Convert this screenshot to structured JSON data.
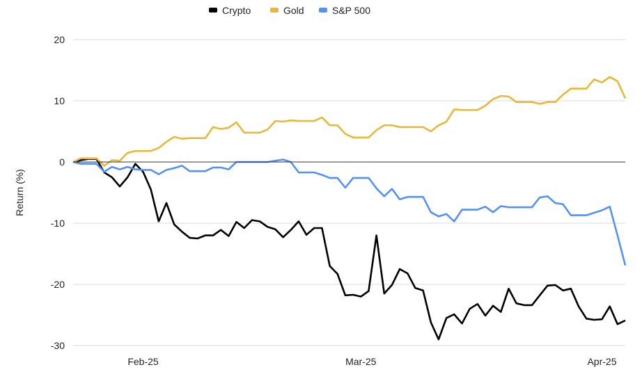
{
  "chart_data": {
    "type": "line",
    "title": "",
    "xlabel": "",
    "ylabel": "Return (%)",
    "ylim": [
      -30,
      20
    ],
    "yticks": [
      "20",
      "10",
      "0",
      "-10",
      "-20",
      "-30"
    ],
    "yticks_values": [
      20,
      10,
      0,
      -10,
      -20,
      -30
    ],
    "xticks": [
      "Feb-25",
      "Mar-25",
      "Apr-25"
    ],
    "xticks_day_index": [
      9,
      37,
      68
    ],
    "grid": true,
    "legend_position": "top-center",
    "series": [
      {
        "name": "Crypto",
        "color": "#000000",
        "values": [
          0,
          0.3,
          0.5,
          0.5,
          -1.7,
          -2.5,
          -4,
          -2.5,
          -0.3,
          -1.6,
          -4.5,
          -9.7,
          -6.7,
          -10.2,
          -11.4,
          -12.4,
          -12.5,
          -12,
          -12,
          -11.1,
          -12.1,
          -9.8,
          -10.8,
          -9.5,
          -9.7,
          -10.6,
          -11,
          -12.3,
          -11.1,
          -9.7,
          -11.9,
          -10.8,
          -10.8,
          -17,
          -18.3,
          -21.8,
          -21.7,
          -22,
          -21.1,
          -12,
          -21.5,
          -20.1,
          -17.5,
          -18.2,
          -20.6,
          -21,
          -26.2,
          -29,
          -25.5,
          -24.9,
          -26.4,
          -24,
          -23.2,
          -25.1,
          -23.5,
          -24.5,
          -20.7,
          -23.1,
          -23.4,
          -23.4,
          -21.8,
          -20.2,
          -20.1,
          -21,
          -20.7,
          -23.6,
          -25.6,
          -25.8,
          -25.7,
          -23.6,
          -26.5,
          -25.9
        ]
      },
      {
        "name": "Gold",
        "color": "#e8b83a",
        "values": [
          0,
          0.6,
          0.6,
          0.6,
          -0.6,
          0.3,
          0.2,
          1.5,
          1.8,
          1.8,
          1.8,
          2.3,
          3.3,
          4.1,
          3.8,
          3.9,
          3.9,
          3.9,
          5.7,
          5.4,
          5.6,
          6.5,
          4.8,
          4.8,
          4.8,
          5.3,
          6.7,
          6.6,
          6.8,
          6.7,
          6.7,
          6.7,
          7.3,
          6.0,
          6.0,
          4.6,
          4.0,
          4.0,
          4.0,
          5.2,
          6.0,
          6.0,
          5.7,
          5.7,
          5.7,
          5.7,
          5.0,
          6.0,
          6.6,
          8.6,
          8.5,
          8.5,
          8.5,
          9.2,
          10.3,
          10.8,
          10.7,
          9.8,
          9.8,
          9.8,
          9.5,
          9.8,
          9.8,
          11.0,
          12.0,
          12.0,
          12.0,
          13.5,
          13.0,
          13.9,
          13.2,
          10.4
        ]
      },
      {
        "name": "S&P 500",
        "color": "#5591f5",
        "values": [
          0,
          -0.3,
          -0.3,
          -0.3,
          -1.6,
          -0.8,
          -1.2,
          -0.8,
          -1.2,
          -1.3,
          -1.3,
          -2.0,
          -1.3,
          -1.0,
          -0.6,
          -1.5,
          -1.5,
          -1.5,
          -0.9,
          -0.9,
          -1.2,
          0,
          0,
          0,
          0,
          0,
          0.2,
          0.4,
          0,
          -1.7,
          -1.7,
          -1.7,
          -2.1,
          -2.6,
          -2.6,
          -4.2,
          -2.6,
          -2.6,
          -2.6,
          -4.3,
          -5.6,
          -4.4,
          -6.1,
          -5.7,
          -5.7,
          -5.7,
          -8.2,
          -8.9,
          -8.5,
          -9.7,
          -7.8,
          -7.8,
          -7.8,
          -7.3,
          -8.2,
          -7.2,
          -7.4,
          -7.4,
          -7.4,
          -7.4,
          -5.8,
          -5.6,
          -6.7,
          -6.9,
          -8.7,
          -8.7,
          -8.7,
          -8.3,
          -7.9,
          -7.3,
          -12,
          -16.9
        ]
      }
    ]
  }
}
